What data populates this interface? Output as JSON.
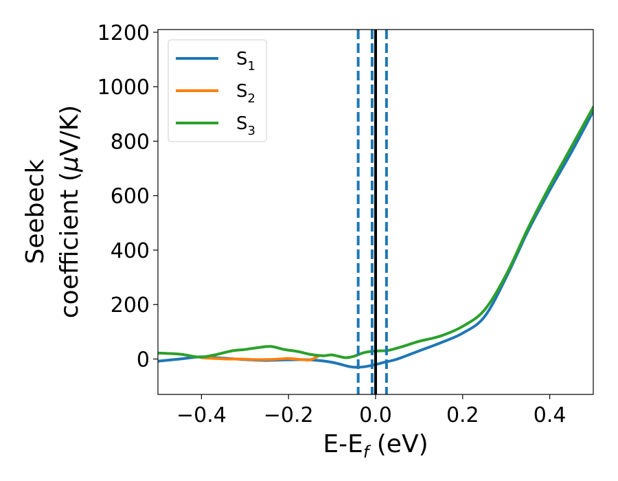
{
  "chart_data": {
    "type": "line",
    "xlabel": "E-E",
    "xlabel_subscript": "f",
    "xlabel_unit": " (eV)",
    "ylabel_line1": "Seebeck",
    "ylabel_line2_prefix": "coefficient  (",
    "ylabel_mu": "μ",
    "ylabel_line2_suffix": "V/K)",
    "xlim": [
      -0.5,
      0.5
    ],
    "ylim": [
      -130,
      1210
    ],
    "xticks": [
      -0.4,
      -0.2,
      0.0,
      0.2,
      0.4
    ],
    "xtick_labels": [
      "−0.4",
      "−0.2",
      "0.0",
      "0.2",
      "0.4"
    ],
    "yticks": [
      0,
      200,
      400,
      600,
      800,
      1000,
      1200
    ],
    "ytick_labels": [
      "0",
      "200",
      "400",
      "600",
      "800",
      "1000",
      "1200"
    ],
    "grid": false,
    "legend_position": "top-left",
    "series": [
      {
        "name": "S",
        "subscript": "1",
        "color": "#1f77b4",
        "x": [
          -0.5,
          -0.45,
          -0.4,
          -0.35,
          -0.3,
          -0.25,
          -0.2,
          -0.15,
          -0.1,
          -0.06,
          -0.04,
          -0.02,
          0.0,
          0.02,
          0.05,
          0.1,
          0.15,
          0.2,
          0.25,
          0.3,
          0.35,
          0.4,
          0.45,
          0.5
        ],
        "values": [
          -8,
          0,
          8,
          3,
          -2,
          -5,
          -3,
          -3,
          -12,
          -28,
          -30,
          -27,
          -20,
          -12,
          0,
          30,
          60,
          95,
          155,
          300,
          470,
          620,
          760,
          910
        ]
      },
      {
        "name": "S",
        "subscript": "2",
        "color": "#ff7f0e",
        "x": [
          -0.4,
          -0.37,
          -0.34,
          -0.31,
          -0.28,
          -0.25,
          -0.22,
          -0.2,
          -0.17,
          -0.15,
          -0.13
        ],
        "values": [
          5,
          2,
          0,
          0,
          -2,
          -2,
          0,
          2,
          -2,
          -3,
          12
        ]
      },
      {
        "name": "S",
        "subscript": "3",
        "color": "#2ca02c",
        "x": [
          -0.5,
          -0.45,
          -0.42,
          -0.4,
          -0.37,
          -0.33,
          -0.3,
          -0.27,
          -0.24,
          -0.21,
          -0.18,
          -0.15,
          -0.12,
          -0.1,
          -0.07,
          -0.05,
          -0.03,
          -0.01,
          0.01,
          0.03,
          0.06,
          0.1,
          0.15,
          0.2,
          0.25,
          0.3,
          0.35,
          0.4,
          0.45,
          0.5
        ],
        "values": [
          22,
          18,
          10,
          7,
          15,
          30,
          35,
          42,
          46,
          35,
          28,
          17,
          12,
          15,
          5,
          10,
          22,
          28,
          30,
          32,
          45,
          65,
          85,
          120,
          180,
          310,
          480,
          635,
          780,
          925
        ]
      }
    ],
    "vlines": [
      {
        "x": -0.04,
        "style": "dashed",
        "color": "#1f77b4"
      },
      {
        "x": -0.008,
        "style": "dashed",
        "color": "#1f77b4"
      },
      {
        "x": 0.025,
        "style": "dashed",
        "color": "#1f77b4"
      },
      {
        "x": 0.0,
        "style": "solid",
        "color": "#000000"
      }
    ]
  }
}
